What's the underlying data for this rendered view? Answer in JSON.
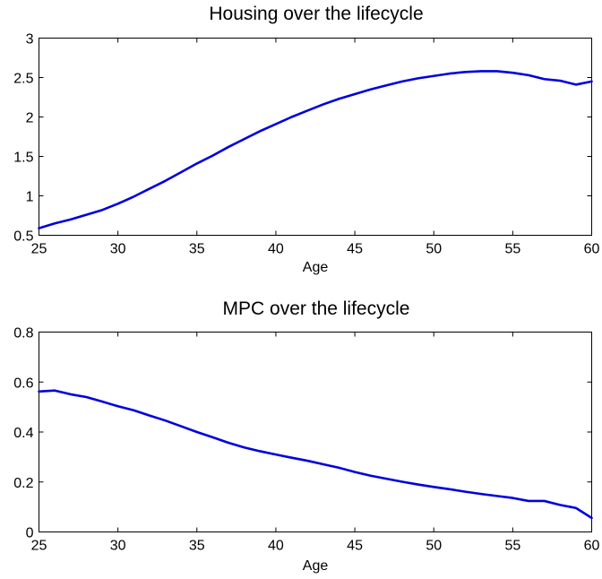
{
  "chart_data": [
    {
      "type": "line",
      "title": "Housing over the lifecycle",
      "xlabel": "Age",
      "ylabel": "",
      "xlim": [
        25,
        60
      ],
      "ylim": [
        0.5,
        3
      ],
      "xticks": [
        25,
        30,
        35,
        40,
        45,
        50,
        55,
        60
      ],
      "xtick_labels": [
        "25",
        "30",
        "35",
        "40",
        "45",
        "50",
        "55",
        "60"
      ],
      "yticks": [
        0.5,
        1,
        1.5,
        2,
        2.5,
        3
      ],
      "ytick_labels": [
        "0.5",
        "1",
        "1.5",
        "2",
        "2.5",
        "3"
      ],
      "grid": false,
      "color": "#0000dd",
      "series": [
        {
          "x": [
            25,
            26,
            27,
            28,
            29,
            30,
            31,
            32,
            33,
            34,
            35,
            36,
            37,
            38,
            39,
            40,
            41,
            42,
            43,
            44,
            45,
            46,
            47,
            48,
            49,
            50,
            51,
            52,
            53,
            54,
            55,
            56,
            57,
            58,
            59,
            60
          ],
          "values": [
            0.59,
            0.65,
            0.7,
            0.76,
            0.82,
            0.9,
            0.99,
            1.09,
            1.19,
            1.3,
            1.41,
            1.51,
            1.62,
            1.72,
            1.82,
            1.91,
            2.0,
            2.08,
            2.16,
            2.23,
            2.29,
            2.35,
            2.4,
            2.45,
            2.49,
            2.52,
            2.55,
            2.57,
            2.58,
            2.58,
            2.56,
            2.53,
            2.48,
            2.46,
            2.41,
            2.45
          ]
        }
      ]
    },
    {
      "type": "line",
      "title": "MPC over the lifecycle",
      "xlabel": "Age",
      "ylabel": "",
      "xlim": [
        25,
        60
      ],
      "ylim": [
        0,
        0.8
      ],
      "xticks": [
        25,
        30,
        35,
        40,
        45,
        50,
        55,
        60
      ],
      "xtick_labels": [
        "25",
        "30",
        "35",
        "40",
        "45",
        "50",
        "55",
        "60"
      ],
      "yticks": [
        0,
        0.2,
        0.4,
        0.6,
        0.8
      ],
      "ytick_labels": [
        "0",
        "0.2",
        "0.4",
        "0.6",
        "0.8"
      ],
      "grid": false,
      "color": "#0000dd",
      "series": [
        {
          "x": [
            25,
            26,
            27,
            28,
            29,
            30,
            31,
            32,
            33,
            34,
            35,
            36,
            37,
            38,
            39,
            40,
            41,
            42,
            43,
            44,
            45,
            46,
            47,
            48,
            49,
            50,
            51,
            52,
            53,
            54,
            55,
            56,
            57,
            58,
            59,
            60
          ],
          "values": [
            0.562,
            0.566,
            0.551,
            0.54,
            0.522,
            0.503,
            0.487,
            0.466,
            0.446,
            0.423,
            0.4,
            0.379,
            0.357,
            0.338,
            0.323,
            0.31,
            0.297,
            0.285,
            0.271,
            0.257,
            0.24,
            0.225,
            0.213,
            0.201,
            0.19,
            0.18,
            0.171,
            0.161,
            0.152,
            0.144,
            0.136,
            0.124,
            0.124,
            0.108,
            0.096,
            0.056
          ]
        }
      ]
    }
  ]
}
